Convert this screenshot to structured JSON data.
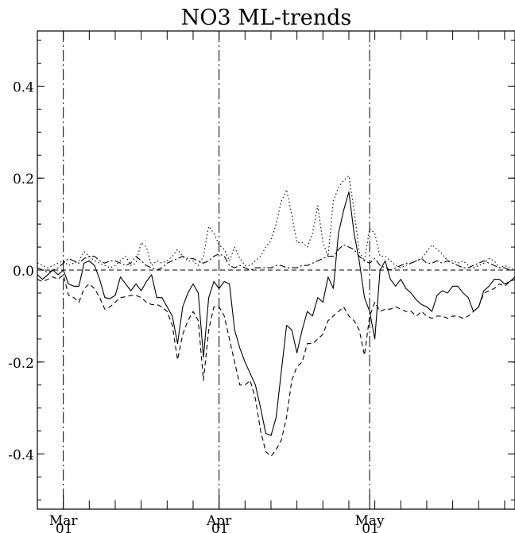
{
  "chart_data": {
    "type": "line",
    "title": "NO3 ML-trends",
    "xlabel": "",
    "ylabel": "",
    "ylim": [
      -0.52,
      0.52
    ],
    "xlim": [
      0,
      92
    ],
    "y_ticks": [
      -0.4,
      -0.2,
      0.0,
      0.2,
      0.4
    ],
    "y_tick_labels": [
      "-0.4",
      "-0.2",
      "0.0",
      "0.2",
      "0.4"
    ],
    "x_major_ticks": [
      {
        "x": 5,
        "month": "Mar",
        "day": "01"
      },
      {
        "x": 35,
        "month": "Apr",
        "day": "01"
      },
      {
        "x": 64,
        "month": "May",
        "day": "01"
      }
    ],
    "month_dividers_x": [
      5,
      35,
      64
    ],
    "zero_line": true,
    "grid": false,
    "series": [
      {
        "style": "solid",
        "x": [
          0,
          1,
          2,
          3,
          4,
          5,
          6,
          7,
          8,
          9,
          10,
          11,
          12,
          13,
          14,
          15,
          16,
          17,
          18,
          19,
          20,
          21,
          22,
          23,
          24,
          25,
          26,
          27,
          28,
          29,
          30,
          31,
          32,
          33,
          34,
          35,
          36,
          37,
          38,
          39,
          40,
          41,
          42,
          43,
          44,
          45,
          46,
          47,
          48,
          49,
          50,
          51,
          52,
          53,
          54,
          55,
          56,
          57,
          58,
          59,
          60,
          61,
          62,
          63,
          64,
          65,
          66,
          67,
          68,
          69,
          70,
          71,
          72,
          73,
          74,
          75,
          76,
          77,
          78,
          79,
          80,
          81,
          82,
          83,
          84,
          85,
          86,
          87,
          88,
          89,
          90,
          91,
          92
        ],
        "values": [
          -0.01,
          -0.02,
          -0.01,
          0.0,
          -0.01,
          0.0,
          -0.03,
          -0.035,
          -0.035,
          0.015,
          0.02,
          0.01,
          -0.02,
          -0.06,
          -0.062,
          -0.055,
          -0.015,
          -0.03,
          -0.045,
          -0.03,
          -0.045,
          -0.025,
          -0.01,
          -0.06,
          -0.06,
          -0.08,
          -0.1,
          -0.16,
          -0.08,
          -0.05,
          -0.03,
          -0.05,
          -0.19,
          -0.06,
          -0.025,
          -0.04,
          -0.025,
          -0.03,
          -0.13,
          -0.17,
          -0.2,
          -0.225,
          -0.25,
          -0.3,
          -0.355,
          -0.36,
          -0.32,
          -0.22,
          -0.12,
          -0.13,
          -0.18,
          -0.13,
          -0.09,
          -0.1,
          -0.06,
          -0.07,
          -0.015,
          -0.04,
          0.08,
          0.13,
          0.17,
          0.08,
          0.02,
          -0.06,
          -0.09,
          -0.15,
          0.0,
          0.02,
          -0.02,
          -0.035,
          -0.02,
          -0.04,
          -0.05,
          -0.065,
          -0.075,
          -0.08,
          -0.09,
          -0.055,
          -0.045,
          -0.05,
          -0.035,
          -0.035,
          -0.05,
          -0.06,
          -0.09,
          -0.08,
          -0.045,
          -0.035,
          -0.02,
          -0.02,
          -0.03,
          -0.025,
          -0.015
        ]
      },
      {
        "style": "dashed",
        "x": [
          0,
          1,
          2,
          3,
          4,
          5,
          6,
          7,
          8,
          9,
          10,
          11,
          12,
          13,
          14,
          15,
          16,
          17,
          18,
          19,
          20,
          21,
          22,
          23,
          24,
          25,
          26,
          27,
          28,
          29,
          30,
          31,
          32,
          33,
          34,
          35,
          36,
          37,
          38,
          39,
          40,
          41,
          42,
          43,
          44,
          45,
          46,
          47,
          48,
          49,
          50,
          51,
          52,
          53,
          54,
          55,
          56,
          57,
          58,
          59,
          60,
          61,
          62,
          63,
          64,
          65,
          66,
          67,
          68,
          69,
          70,
          71,
          72,
          73,
          74,
          75,
          76,
          77,
          78,
          79,
          80,
          81,
          82,
          83,
          84,
          85,
          86,
          87,
          88,
          89,
          90,
          91,
          92
        ],
        "values": [
          -0.02,
          -0.025,
          -0.02,
          -0.015,
          -0.02,
          -0.01,
          -0.055,
          -0.06,
          -0.07,
          -0.04,
          -0.03,
          -0.04,
          -0.06,
          -0.085,
          -0.08,
          -0.07,
          -0.06,
          -0.058,
          -0.055,
          -0.055,
          -0.06,
          -0.07,
          -0.075,
          -0.075,
          -0.08,
          -0.09,
          -0.12,
          -0.195,
          -0.14,
          -0.11,
          -0.09,
          -0.11,
          -0.24,
          -0.13,
          -0.08,
          -0.08,
          -0.1,
          -0.15,
          -0.2,
          -0.25,
          -0.25,
          -0.24,
          -0.28,
          -0.35,
          -0.395,
          -0.405,
          -0.39,
          -0.37,
          -0.32,
          -0.24,
          -0.21,
          -0.2,
          -0.16,
          -0.16,
          -0.15,
          -0.14,
          -0.11,
          -0.1,
          -0.09,
          -0.08,
          -0.1,
          -0.11,
          -0.13,
          -0.185,
          -0.1,
          -0.07,
          -0.09,
          -0.085,
          -0.085,
          -0.08,
          -0.085,
          -0.09,
          -0.09,
          -0.1,
          -0.09,
          -0.1,
          -0.105,
          -0.1,
          -0.1,
          -0.105,
          -0.1,
          -0.1,
          -0.105,
          -0.1,
          -0.09,
          -0.08,
          -0.05,
          -0.045,
          -0.04,
          -0.03,
          -0.035,
          -0.025,
          -0.02
        ]
      },
      {
        "style": "dotted",
        "x": [
          0,
          1,
          2,
          3,
          4,
          5,
          6,
          7,
          8,
          9,
          10,
          11,
          12,
          13,
          14,
          15,
          16,
          17,
          18,
          19,
          20,
          21,
          22,
          23,
          24,
          25,
          26,
          27,
          28,
          29,
          30,
          31,
          32,
          33,
          34,
          35,
          36,
          37,
          38,
          39,
          40,
          41,
          42,
          43,
          44,
          45,
          46,
          47,
          48,
          49,
          50,
          51,
          52,
          53,
          54,
          55,
          56,
          57,
          58,
          59,
          60,
          61,
          62,
          63,
          64,
          65,
          66,
          67,
          68,
          69,
          70,
          71,
          72,
          73,
          74,
          75,
          76,
          77,
          78,
          79,
          80,
          81,
          82,
          83,
          84,
          85,
          86,
          87,
          88,
          89,
          90,
          91,
          92
        ],
        "values": [
          0.015,
          0.01,
          0.005,
          0.01,
          0.015,
          0.02,
          0.01,
          0.015,
          0.02,
          0.04,
          0.03,
          0.02,
          0.015,
          0.01,
          0.005,
          0.01,
          0.02,
          0.03,
          0.01,
          0.015,
          0.06,
          0.05,
          0.01,
          0.02,
          0.015,
          0.02,
          0.03,
          0.045,
          0.03,
          0.02,
          0.02,
          0.01,
          0.03,
          0.095,
          0.08,
          0.055,
          0.045,
          0.02,
          0.05,
          0.025,
          0.01,
          0.01,
          0.02,
          0.03,
          0.05,
          0.065,
          0.1,
          0.15,
          0.175,
          0.12,
          0.06,
          0.06,
          0.05,
          0.08,
          0.14,
          0.06,
          0.03,
          0.15,
          0.18,
          0.195,
          0.205,
          0.13,
          0.04,
          0.02,
          0.09,
          0.08,
          0.03,
          0.03,
          0.02,
          0.01,
          0.005,
          0.01,
          0.015,
          0.02,
          0.025,
          0.04,
          0.055,
          0.045,
          0.035,
          0.02,
          0.02,
          0.015,
          0.02,
          0.01,
          0.005,
          0.01,
          0.015,
          0.025,
          0.02,
          0.005,
          0.01,
          0.005,
          0.0
        ]
      },
      {
        "style": "dash-dot",
        "x": [
          0,
          1,
          2,
          3,
          4,
          5,
          6,
          7,
          8,
          9,
          10,
          11,
          12,
          13,
          14,
          15,
          16,
          17,
          18,
          19,
          20,
          21,
          22,
          23,
          24,
          25,
          26,
          27,
          28,
          29,
          30,
          31,
          32,
          33,
          34,
          35,
          36,
          37,
          38,
          39,
          40,
          41,
          42,
          43,
          44,
          45,
          46,
          47,
          48,
          49,
          50,
          51,
          52,
          53,
          54,
          55,
          56,
          57,
          58,
          59,
          60,
          61,
          62,
          63,
          64,
          65,
          66,
          67,
          68,
          69,
          70,
          71,
          72,
          73,
          74,
          75,
          76,
          77,
          78,
          79,
          80,
          81,
          82,
          83,
          84,
          85,
          86,
          87,
          88,
          89,
          90,
          91,
          92
        ],
        "values": [
          0.005,
          0.0,
          -0.005,
          0.0,
          0.005,
          0.015,
          0.025,
          0.02,
          0.015,
          0.025,
          0.03,
          0.03,
          0.02,
          0.015,
          0.02,
          0.02,
          0.015,
          0.01,
          0.015,
          0.03,
          0.02,
          0.01,
          0.005,
          0.0,
          0.005,
          0.015,
          0.02,
          0.025,
          0.03,
          0.025,
          0.025,
          0.02,
          0.015,
          0.02,
          0.03,
          0.035,
          0.03,
          0.01,
          0.005,
          0.01,
          0.005,
          0.0,
          0.005,
          0.005,
          0.005,
          0.005,
          0.01,
          0.01,
          0.005,
          0.005,
          0.005,
          0.01,
          0.01,
          0.015,
          0.02,
          0.025,
          0.03,
          0.03,
          0.045,
          0.055,
          0.05,
          0.045,
          0.03,
          0.02,
          0.015,
          0.025,
          0.01,
          0.005,
          0.0,
          0.005,
          0.01,
          0.015,
          0.015,
          0.02,
          0.025,
          0.015,
          0.015,
          0.02,
          0.015,
          0.02,
          0.015,
          0.01,
          0.005,
          0.005,
          0.01,
          0.015,
          0.02,
          0.015,
          0.01,
          0.005,
          0.005,
          0.0,
          0.0
        ]
      }
    ]
  }
}
